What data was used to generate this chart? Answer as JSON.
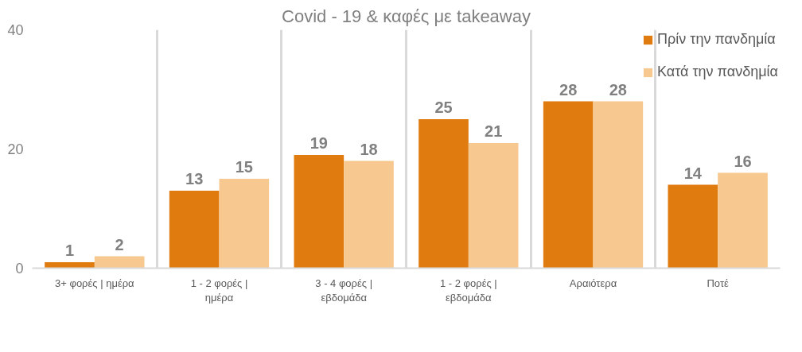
{
  "chart_data": {
    "type": "bar",
    "title": "Covid - 19 & καφές με takeaway",
    "categories": [
      "3+ φορές | ημέρα",
      "1 - 2 φορές | ημέρα",
      "3 - 4 φορές | εβδομάδα",
      "1 - 2 φορές | εβδομάδα",
      "Αραιότερα",
      "Ποτέ"
    ],
    "series": [
      {
        "name": "Πρίν την πανδημία",
        "color": "#df7b0f",
        "values": [
          1,
          13,
          19,
          25,
          28,
          14
        ]
      },
      {
        "name": "Κατά την πανδημία",
        "color": "#f7c890",
        "values": [
          2,
          15,
          18,
          21,
          28,
          16
        ]
      }
    ],
    "ylim": [
      0,
      40
    ],
    "yticks": [
      0,
      20,
      40
    ],
    "grid": "x",
    "legend": "top right",
    "data_labels": true
  }
}
